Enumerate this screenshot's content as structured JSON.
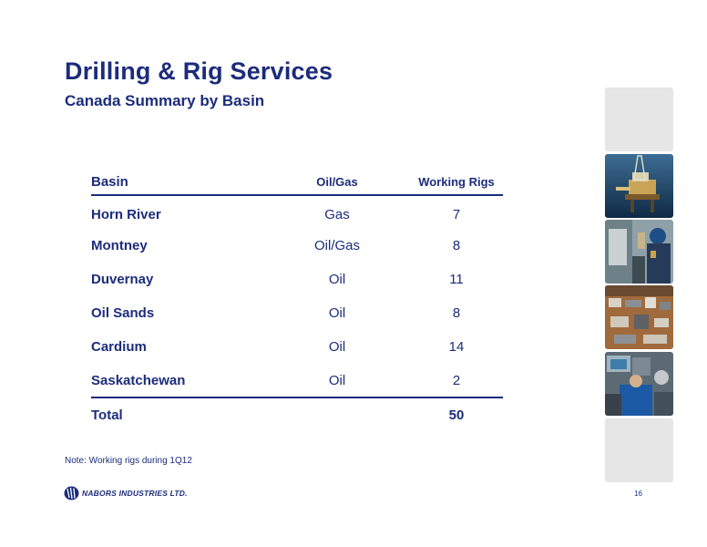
{
  "header": {
    "title": "Drilling & Rig Services",
    "subtitle": "Canada Summary by Basin"
  },
  "table": {
    "columns": [
      "Basin",
      "Oil/Gas",
      "Working Rigs"
    ],
    "rows": [
      {
        "basin": "Horn River",
        "type": "Gas",
        "rigs": "7"
      },
      {
        "basin": "Montney",
        "type": "Oil/Gas",
        "rigs": "8"
      },
      {
        "basin": "Duvernay",
        "type": "Oil",
        "rigs": "11"
      },
      {
        "basin": "Oil Sands",
        "type": "Oil",
        "rigs": "8"
      },
      {
        "basin": "Cardium",
        "type": "Oil",
        "rigs": "14"
      },
      {
        "basin": "Saskatchewan",
        "type": "Oil",
        "rigs": "2"
      }
    ],
    "total": {
      "label": "Total",
      "rigs": "50"
    }
  },
  "note": "Note:  Working rigs during 1Q12",
  "footer": {
    "logo_text": "NABORS INDUSTRIES LTD.",
    "page_number": "16"
  },
  "side_images": [
    "blank-panel",
    "offshore-rig-photo",
    "rig-worker-photo",
    "rig-site-aerial-photo",
    "control-room-photo",
    "blank-panel"
  ],
  "colors": {
    "brand_navy": "#1c2c7c",
    "panel_gray": "#e6e6e6"
  }
}
